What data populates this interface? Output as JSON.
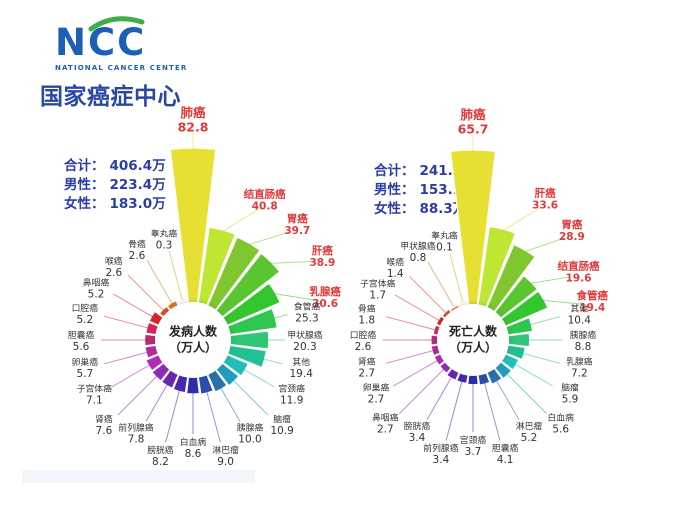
{
  "logo": {
    "acronym": "NCC",
    "subtitle": "NATIONAL CANCER CENTER",
    "chinese_name": "国家癌症中心",
    "blue": "#1d5fb5",
    "dark_blue": "#2a47a5",
    "green": "#3fae49"
  },
  "colors": {
    "highlight_label": "#e23a3a",
    "normal_label": "#333333",
    "summary_text": "#2b3ea7",
    "wedge_gap": "#ffffff"
  },
  "chart_data": [
    {
      "type": "pie",
      "variant": "nightingale-rose",
      "title": "发病人数（万人）",
      "center_label": [
        "发病人数",
        "（万人）"
      ],
      "unit": "万人",
      "order": "clockwise-from-top, sorted descending",
      "legend_position": "labels-around-with-leader-lines",
      "summary_rows": [
        {
          "label": "合计：",
          "value": "406.4万"
        },
        {
          "label": "男性：",
          "value": "223.4万"
        },
        {
          "label": "女性：",
          "value": "183.0万"
        }
      ],
      "categories": [
        "肺癌",
        "结直肠癌",
        "胃癌",
        "肝癌",
        "乳腺癌",
        "食管癌",
        "甲状腺癌",
        "其他",
        "宫颈癌",
        "脑瘤",
        "胰腺癌",
        "淋巴瘤",
        "白血病",
        "膀胱癌",
        "前列腺癌",
        "肾癌",
        "子宫体癌",
        "卵巢癌",
        "胆囊癌",
        "口腔癌",
        "鼻咽癌",
        "喉癌",
        "骨癌",
        "睾丸癌"
      ],
      "values": [
        82.8,
        40.8,
        39.7,
        38.9,
        30.6,
        25.3,
        20.3,
        19.4,
        11.9,
        10.9,
        10.0,
        9.0,
        8.6,
        8.2,
        7.8,
        7.6,
        7.1,
        5.7,
        5.6,
        5.2,
        5.2,
        2.6,
        2.6,
        0.3
      ],
      "values_display": [
        "82.8",
        "40.8",
        "39.7",
        "38.9",
        "30.6",
        "25.3",
        "20.3",
        "19.4",
        "11.9",
        "10.9",
        "10.0",
        "9.0",
        "8.6",
        "8.2",
        "7.8",
        "7.6",
        "7.1",
        "5.7",
        "5.6",
        "5.2",
        "5.2",
        "2.6",
        "2.6",
        "0.3"
      ],
      "highlighted_categories": [
        "肺癌",
        "结直肠癌",
        "胃癌",
        "肝癌",
        "乳腺癌"
      ]
    },
    {
      "type": "pie",
      "variant": "nightingale-rose",
      "title": "死亡人数（万人）",
      "center_label": [
        "死亡人数",
        "（万人）"
      ],
      "unit": "万人",
      "order": "clockwise-from-top, sorted descending",
      "legend_position": "labels-around-with-leader-lines",
      "summary_rows": [
        {
          "label": "合计：",
          "value": "241.4万"
        },
        {
          "label": "男性：",
          "value": "153.1万"
        },
        {
          "label": "女性：",
          "value": "88.3万"
        }
      ],
      "categories": [
        "肺癌",
        "肝癌",
        "胃癌",
        "结直肠癌",
        "食管癌",
        "其他",
        "胰腺癌",
        "乳腺癌",
        "脑瘤",
        "白血病",
        "淋巴瘤",
        "胆囊癌",
        "宫颈癌",
        "前列腺癌",
        "膀胱癌",
        "鼻咽癌",
        "卵巢癌",
        "肾癌",
        "口腔癌",
        "骨癌",
        "子宫体癌",
        "喉癌",
        "甲状腺癌",
        "睾丸癌"
      ],
      "values": [
        65.7,
        33.6,
        28.9,
        19.6,
        19.4,
        10.4,
        8.8,
        7.2,
        5.9,
        5.6,
        5.2,
        4.1,
        3.7,
        3.4,
        3.4,
        2.7,
        2.7,
        2.7,
        2.6,
        1.8,
        1.7,
        1.4,
        0.8,
        0.1
      ],
      "values_display": [
        "65.7",
        "33.6",
        "28.9",
        "19.6",
        "19.4",
        "10.4",
        "8.8",
        "7.2",
        "5.9",
        "5.6",
        "5.2",
        "4.1",
        "3.7",
        "3.4",
        "3.4",
        "2.7",
        "2.7",
        "2.7",
        "2.6",
        "1.8",
        "1.7",
        "1.4",
        "0.8",
        "0.1"
      ],
      "highlighted_categories": [
        "肺癌",
        "肝癌",
        "胃癌",
        "结直肠癌",
        "食管癌"
      ]
    }
  ]
}
